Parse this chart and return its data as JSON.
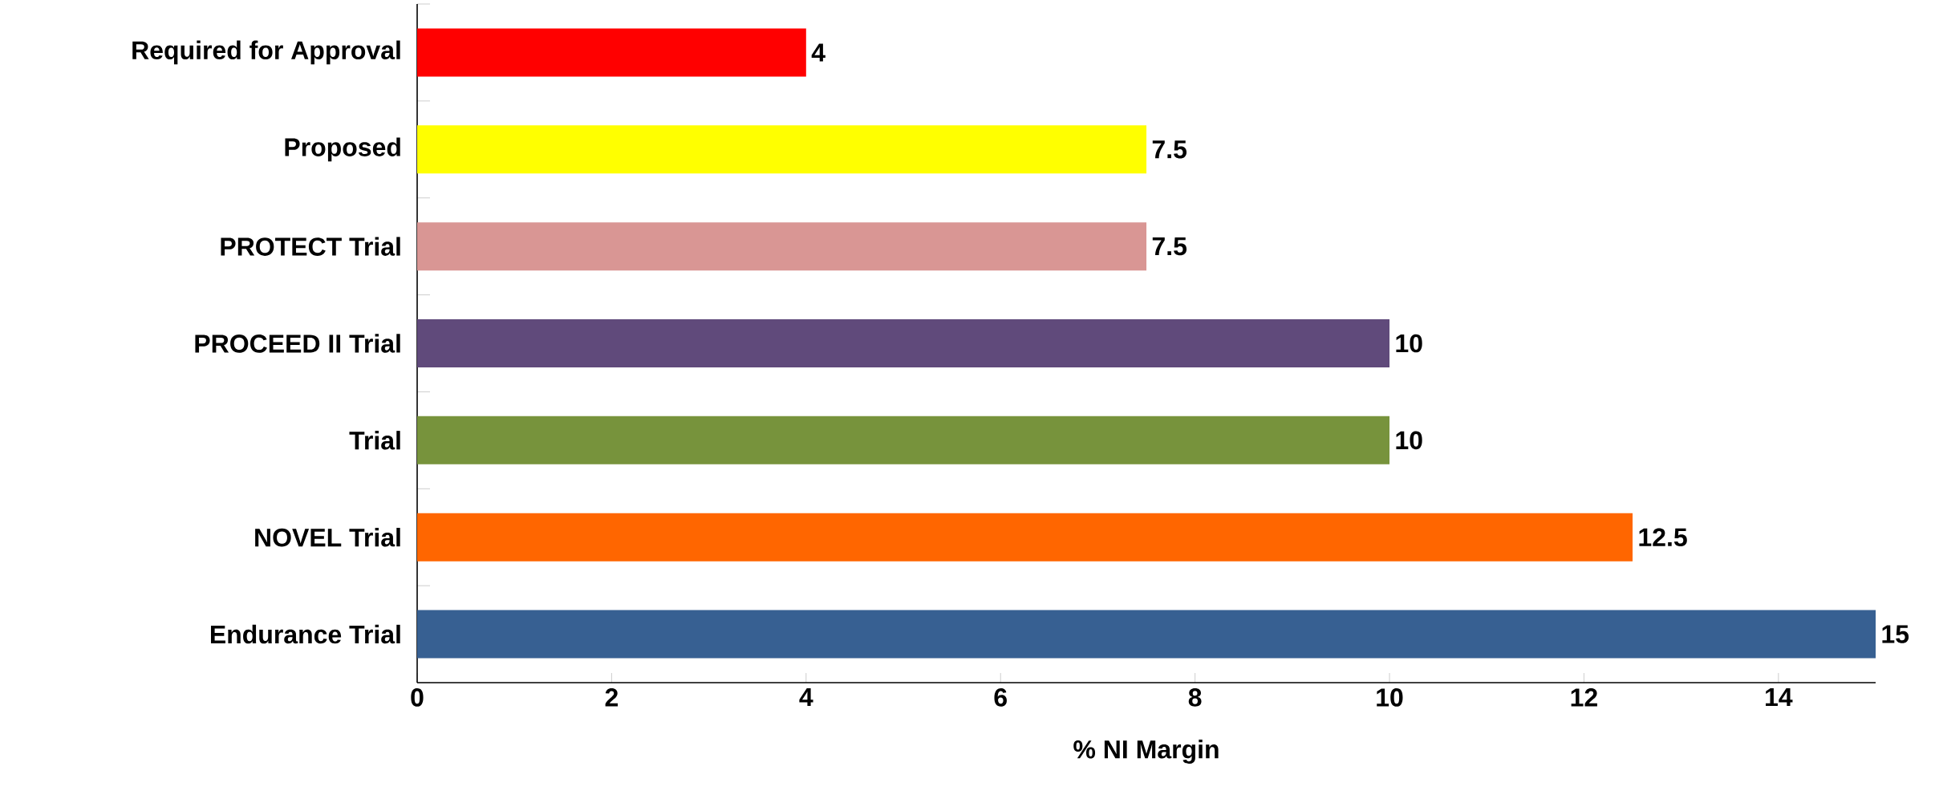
{
  "chart_data": {
    "type": "bar",
    "orientation": "horizontal",
    "categories": [
      "Required for Approval",
      "Proposed",
      "PROTECT Trial",
      "PROCEED II Trial",
      "Trial",
      "NOVEL Trial",
      "Endurance Trial"
    ],
    "values": [
      4,
      7.5,
      7.5,
      10,
      10,
      12.5,
      15
    ],
    "colors": [
      "#ff0000",
      "#ffff00",
      "#d99694",
      "#604a7b",
      "#77933c",
      "#ff6600",
      "#376092"
    ],
    "xlabel": "% NI Margin",
    "xlim": [
      0,
      15
    ],
    "xticks": [
      0,
      2,
      4,
      6,
      8,
      10,
      12,
      14
    ],
    "data_labels": true
  }
}
